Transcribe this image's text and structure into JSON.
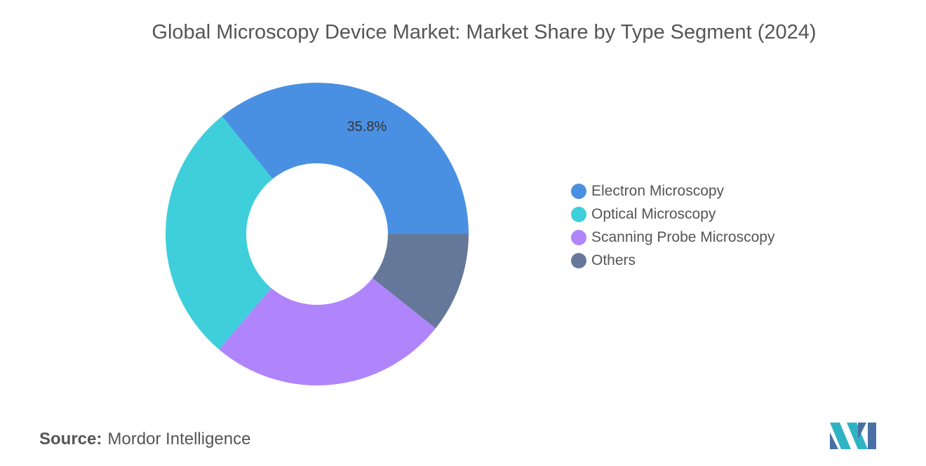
{
  "chart_data": {
    "type": "pie",
    "variant": "donut",
    "title": "Global Microscopy Device Market: Market Share by Type Segment (2024)",
    "series": [
      {
        "name": "Electron Microscopy",
        "value": 35.8,
        "color": "#4a90e2",
        "label": "35.8%"
      },
      {
        "name": "Optical Microscopy",
        "value": 28.0,
        "color": "#3ecfdb"
      },
      {
        "name": "Scanning Probe Microscopy",
        "value": 25.5,
        "color": "#b084fb"
      },
      {
        "name": "Others",
        "value": 10.7,
        "color": "#657899"
      }
    ],
    "legend_position": "right"
  },
  "source": {
    "label": "Source:",
    "text": "Mordor Intelligence"
  },
  "logo_icon": "mordor-intelligence-logo-icon"
}
